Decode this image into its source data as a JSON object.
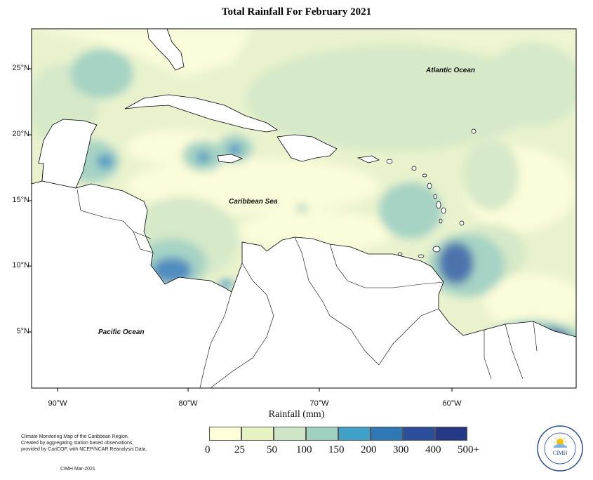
{
  "title": "Total Rainfall For February 2021",
  "map": {
    "y_ticks": [
      "25°N",
      "20°N",
      "15°N",
      "10°N",
      "5°N"
    ],
    "x_ticks": [
      "90°W",
      "80°W",
      "70°W",
      "60°W"
    ],
    "labels": {
      "atlantic": "Atlantic Ocean",
      "caribbean": "Caribbean Sea",
      "pacific": "Pacific Ocean"
    },
    "x_axis_label": "Rainfall (mm)"
  },
  "legend": {
    "colors": [
      "#fdfdd8",
      "#e6f2c0",
      "#cfe6c6",
      "#9ed1c0",
      "#3fa1c8",
      "#2f78b6",
      "#2b4d9c",
      "#243a86",
      "#0c1f55"
    ],
    "labels": [
      "0",
      "25",
      "50",
      "100",
      "150",
      "200",
      "300",
      "400",
      "500+"
    ]
  },
  "credit": {
    "lines": [
      "Climate Monitoring Map of the Caribbean Region.",
      "Created by aggregating station based observations,",
      "provided by CariCOF, with NCEP/NCAR Reanalysis Data."
    ],
    "date": "CIMH Mar-2021"
  },
  "logo": {
    "text": "CIMH",
    "icon": "sun-cloud-icon"
  }
}
